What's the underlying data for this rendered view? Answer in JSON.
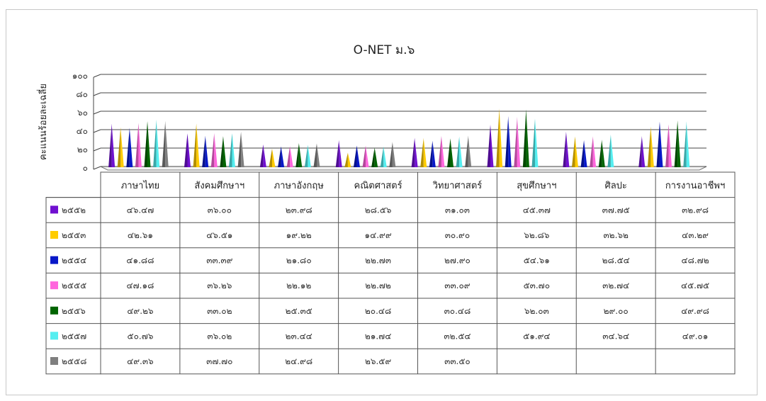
{
  "chart_data": {
    "type": "bar",
    "title": "O-NET ม.๖",
    "ylabel": "คะแนนร้อยละเฉลี่ย",
    "ylim": [
      0,
      100
    ],
    "yticks": [
      {
        "value": 0,
        "label": "๐"
      },
      {
        "value": 20,
        "label": "๒๐"
      },
      {
        "value": 40,
        "label": "๔๐"
      },
      {
        "value": 60,
        "label": "๖๐"
      },
      {
        "value": 80,
        "label": "๘๐"
      },
      {
        "value": 100,
        "label": "๑๐๐"
      }
    ],
    "grid": true,
    "categories": [
      "ภาษาไทย",
      "สังคมศึกษาฯ",
      "ภาษาอังกฤษ",
      "คณิตศาสตร์",
      "วิทยาศาสตร์",
      "สุขศึกษาฯ",
      "ศิลปะ",
      "การงานอาชีพฯ"
    ],
    "series": [
      {
        "name": "๒๕๕๒",
        "color": "#7010d0",
        "values": [
          46.47,
          36.0,
          23.98,
          28.56,
          31.03,
          45.37,
          37.75,
          32.98
        ],
        "labels": [
          "๔๖.๔๗",
          "๓๖.๐๐",
          "๒๓.๙๘",
          "๒๘.๕๖",
          "๓๑.๐๓",
          "๔๕.๓๗",
          "๓๗.๗๕",
          "๓๒.๙๘"
        ]
      },
      {
        "name": "๒๕๕๓",
        "color": "#ffcc00",
        "values": [
          42.61,
          46.51,
          19.22,
          14.99,
          30.9,
          62.86,
          32.62,
          43.29
        ],
        "labels": [
          "๔๒.๖๑",
          "๔๖.๕๑",
          "๑๙.๒๒",
          "๑๔.๙๙",
          "๓๐.๙๐",
          "๖๒.๘๖",
          "๓๒.๖๒",
          "๔๓.๒๙"
        ]
      },
      {
        "name": "๒๕๕๔",
        "color": "#0818c8",
        "values": [
          41.88,
          33.39,
          21.8,
          22.73,
          27.9,
          54.61,
          28.54,
          48.72
        ],
        "labels": [
          "๔๑.๘๘",
          "๓๓.๓๙",
          "๒๑.๘๐",
          "๒๒.๗๓",
          "๒๗.๙๐",
          "๕๔.๖๑",
          "๒๘.๕๔",
          "๔๘.๗๒"
        ]
      },
      {
        "name": "๒๕๕๕",
        "color": "#ff66dd",
        "values": [
          47.18,
          36.26,
          22.12,
          22.72,
          33.09,
          53.7,
          32.74,
          45.75
        ],
        "labels": [
          "๔๗.๑๘",
          "๓๖.๒๖",
          "๒๒.๑๒",
          "๒๒.๗๒",
          "๓๓.๐๙",
          "๕๓.๗๐",
          "๓๒.๗๔",
          "๔๕.๗๕"
        ]
      },
      {
        "name": "๒๕๕๖",
        "color": "#006400",
        "values": [
          49.26,
          33.02,
          25.35,
          20.48,
          30.48,
          62.03,
          29.0,
          49.98
        ],
        "labels": [
          "๔๙.๒๖",
          "๓๓.๐๒",
          "๒๕.๓๕",
          "๒๐.๔๘",
          "๓๐.๔๘",
          "๖๒.๐๓",
          "๒๙.๐๐",
          "๔๙.๙๘"
        ]
      },
      {
        "name": "๒๕๕๗",
        "color": "#55eef0",
        "values": [
          50.76,
          36.02,
          23.44,
          21.74,
          32.54,
          51.94,
          34.64,
          49.01
        ],
        "labels": [
          "๕๐.๗๖",
          "๓๖.๐๒",
          "๒๓.๔๔",
          "๒๑.๗๔",
          "๓๒.๕๔",
          "๕๑.๙๔",
          "๓๔.๖๔",
          "๔๙.๐๑"
        ]
      },
      {
        "name": "๒๕๕๘",
        "color": "#7f7f7f",
        "values": [
          49.36,
          37.7,
          24.98,
          26.59,
          33.5,
          null,
          null,
          null
        ],
        "labels": [
          "๔๙.๓๖",
          "๓๗.๗๐",
          "๒๔.๙๘",
          "๒๖.๕๙",
          "๓๓.๕๐",
          "",
          "",
          ""
        ]
      }
    ]
  }
}
